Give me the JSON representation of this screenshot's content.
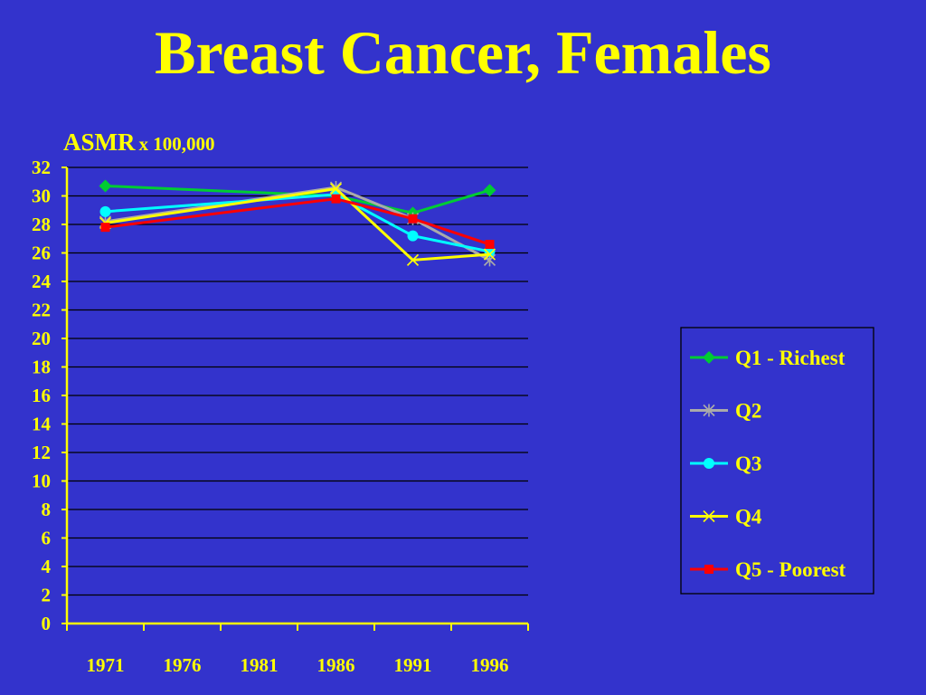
{
  "slide": {
    "title": "Breast Cancer, Females",
    "background": "#3333CC",
    "text_color": "#FFFF00"
  },
  "chart_data": {
    "type": "line",
    "ylabel": "ASMR",
    "ylabel_unit": "x 100,000",
    "xlabel": "",
    "x_ticks": [
      "1971",
      "1976",
      "1981",
      "1986",
      "1991",
      "1996"
    ],
    "xlim": [
      1968.5,
      1998.5
    ],
    "ylim": [
      0,
      32
    ],
    "y_ticks": [
      0,
      2,
      4,
      6,
      8,
      10,
      12,
      14,
      16,
      18,
      20,
      22,
      24,
      26,
      28,
      30,
      32
    ],
    "grid": true,
    "legend_position": "right",
    "x": [
      1971,
      1986,
      1991,
      1996
    ],
    "series": [
      {
        "name": "Q1 - Richest",
        "color": "#00CC33",
        "marker": "diamond",
        "values": [
          30.7,
          30.0,
          28.8,
          30.4
        ]
      },
      {
        "name": "Q2",
        "color": "#AAAAAA",
        "marker": "asterisk",
        "values": [
          28.2,
          30.6,
          28.4,
          25.5
        ]
      },
      {
        "name": "Q3",
        "color": "#00FFFF",
        "marker": "circle",
        "values": [
          28.9,
          30.1,
          27.2,
          26.1
        ]
      },
      {
        "name": "Q4",
        "color": "#FFFF00",
        "marker": "x",
        "values": [
          28.1,
          30.5,
          25.5,
          25.9
        ]
      },
      {
        "name": "Q5 - Poorest",
        "color": "#FF0000",
        "marker": "square",
        "values": [
          27.8,
          29.8,
          28.4,
          26.6
        ]
      }
    ]
  }
}
